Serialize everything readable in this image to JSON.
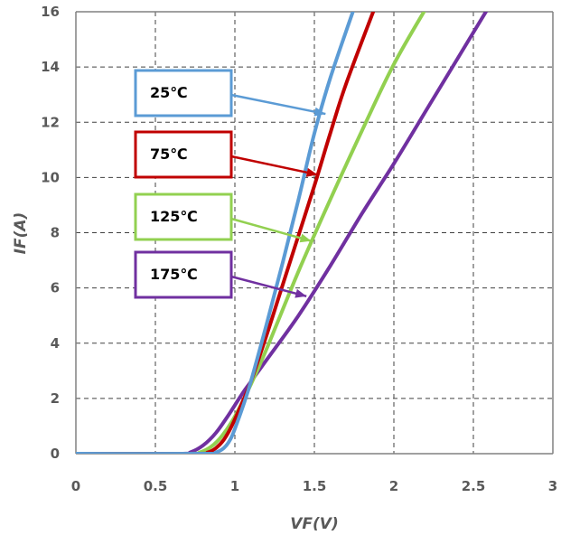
{
  "chart_data": {
    "type": "line",
    "title": "",
    "xlabel": "VF(V)",
    "ylabel": "IF(A)",
    "xlim": [
      0,
      3
    ],
    "ylim": [
      0,
      16
    ],
    "xticks": [
      0,
      0.5,
      1,
      1.5,
      2,
      2.5,
      3
    ],
    "xtick_labels": [
      "0",
      "0.5",
      "1",
      "1.5",
      "2",
      "2.5",
      "3"
    ],
    "yticks": [
      0,
      2,
      4,
      6,
      8,
      10,
      12,
      14,
      16
    ],
    "ytick_labels": [
      "0",
      "2",
      "4",
      "6",
      "8",
      "10",
      "12",
      "14",
      "16"
    ],
    "grid": true,
    "legend": "callouts",
    "series": [
      {
        "name": "25℃",
        "color": "#5B9BD5",
        "x": [
          0,
          0.8,
          0.88,
          0.93,
          0.97,
          1.0,
          1.05,
          1.1,
          1.2,
          1.3,
          1.4,
          1.5,
          1.6,
          1.76
        ],
        "y": [
          0,
          0,
          0.05,
          0.2,
          0.5,
          0.9,
          1.7,
          2.6,
          4.7,
          6.9,
          9.2,
          11.6,
          13.6,
          16.3
        ],
        "callout_point": [
          1.57,
          12.3
        ]
      },
      {
        "name": "75℃",
        "color": "#C00000",
        "x": [
          0,
          0.75,
          0.83,
          0.88,
          0.93,
          0.98,
          1.05,
          1.1,
          1.2,
          1.3,
          1.4,
          1.5,
          1.6,
          1.7,
          1.89
        ],
        "y": [
          0,
          0,
          0.05,
          0.2,
          0.5,
          1.0,
          1.9,
          2.6,
          4.3,
          6.1,
          7.9,
          9.7,
          11.6,
          13.4,
          16.3
        ],
        "callout_point": [
          1.52,
          10.1
        ]
      },
      {
        "name": "125℃",
        "color": "#92D050",
        "x": [
          0,
          0.7,
          0.78,
          0.85,
          0.92,
          1.0,
          1.1,
          1.2,
          1.4,
          1.6,
          1.8,
          2.0,
          2.22
        ],
        "y": [
          0,
          0,
          0.05,
          0.25,
          0.65,
          1.35,
          2.5,
          3.8,
          6.6,
          9.2,
          11.7,
          14.1,
          16.3
        ],
        "callout_point": [
          1.48,
          7.7
        ]
      },
      {
        "name": "175℃",
        "color": "#7030A0",
        "x": [
          0,
          0.65,
          0.72,
          0.8,
          0.88,
          0.96,
          1.05,
          1.1,
          1.2,
          1.4,
          1.6,
          1.8,
          2.0,
          2.2,
          2.4,
          2.6
        ],
        "y": [
          0,
          0,
          0.05,
          0.3,
          0.75,
          1.4,
          2.2,
          2.6,
          3.4,
          5.0,
          6.8,
          8.7,
          10.5,
          12.4,
          14.3,
          16.2
        ],
        "callout_point": [
          1.45,
          5.7
        ]
      }
    ]
  }
}
